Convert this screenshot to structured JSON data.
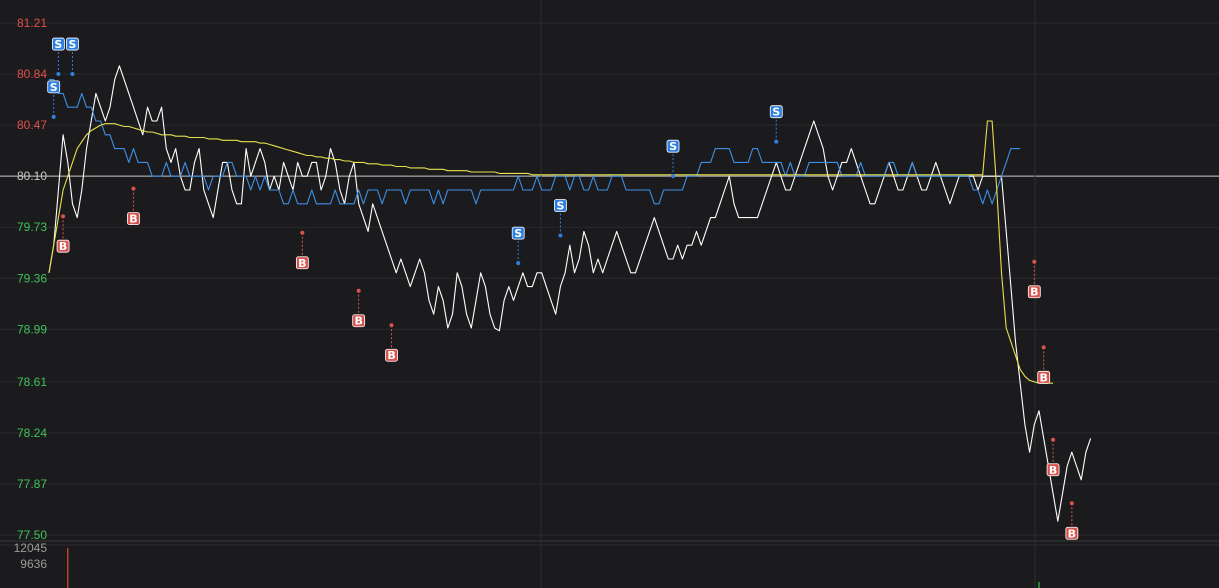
{
  "chart_data": {
    "type": "line",
    "title": "",
    "xlabel": "",
    "ylabel": "",
    "ylim": [
      77.5,
      81.21
    ],
    "y_ticks": [
      "81.21",
      "80.84",
      "80.47",
      "80.10",
      "79.73",
      "79.36",
      "78.99",
      "78.61",
      "78.24",
      "77.87",
      "77.50"
    ],
    "reference_price": 80.1,
    "grid": true,
    "x_points": 225,
    "series": [
      {
        "color": "#ffffff",
        "values": [
          79.4,
          79.6,
          80.0,
          80.4,
          80.2,
          79.9,
          79.8,
          80.0,
          80.3,
          80.5,
          80.7,
          80.6,
          80.5,
          80.6,
          80.8,
          80.9,
          80.8,
          80.7,
          80.6,
          80.5,
          80.4,
          80.6,
          80.5,
          80.5,
          80.6,
          80.3,
          80.2,
          80.3,
          80.1,
          80.0,
          80.0,
          80.2,
          80.3,
          80.0,
          79.9,
          79.8,
          80.0,
          80.2,
          80.2,
          80.0,
          79.9,
          79.9,
          80.3,
          80.1,
          80.2,
          80.3,
          80.2,
          80.0,
          80.1,
          80.0,
          80.2,
          80.1,
          80.0,
          80.2,
          80.1,
          80.1,
          80.2,
          80.2,
          80.0,
          80.1,
          80.3,
          80.2,
          80.0,
          79.9,
          80.1,
          80.2,
          79.9,
          79.8,
          79.7,
          79.9,
          79.8,
          79.7,
          79.6,
          79.5,
          79.4,
          79.5,
          79.4,
          79.3,
          79.4,
          79.5,
          79.4,
          79.2,
          79.1,
          79.3,
          79.2,
          79.0,
          79.1,
          79.4,
          79.3,
          79.1,
          79.0,
          79.2,
          79.4,
          79.3,
          79.1,
          79.0,
          78.98,
          79.2,
          79.3,
          79.2,
          79.3,
          79.4,
          79.3,
          79.3,
          79.4,
          79.4,
          79.3,
          79.2,
          79.1,
          79.3,
          79.4,
          79.6,
          79.4,
          79.5,
          79.7,
          79.6,
          79.4,
          79.5,
          79.4,
          79.5,
          79.6,
          79.7,
          79.6,
          79.5,
          79.4,
          79.4,
          79.5,
          79.6,
          79.7,
          79.8,
          79.7,
          79.6,
          79.5,
          79.5,
          79.6,
          79.5,
          79.6,
          79.6,
          79.7,
          79.6,
          79.7,
          79.8,
          79.8,
          79.9,
          80.0,
          80.1,
          79.9,
          79.8,
          79.8,
          79.8,
          79.8,
          79.8,
          79.9,
          80.0,
          80.1,
          80.2,
          80.1,
          80.0,
          80.0,
          80.1,
          80.2,
          80.3,
          80.4,
          80.5,
          80.4,
          80.3,
          80.1,
          80.0,
          80.1,
          80.2,
          80.2,
          80.3,
          80.2,
          80.1,
          80.0,
          79.9,
          79.9,
          80.0,
          80.1,
          80.2,
          80.1,
          80.0,
          80.0,
          80.1,
          80.2,
          80.1,
          80.0,
          80.0,
          80.1,
          80.2,
          80.1,
          80.0,
          79.9,
          80.0,
          80.1,
          80.1,
          80.1,
          80.1,
          80.0,
          80.1,
          80.1,
          80.1,
          80.1,
          80.1,
          79.7,
          79.3,
          78.9,
          78.6,
          78.3,
          78.1,
          78.3,
          78.4,
          78.2,
          78.0,
          77.8,
          77.6,
          77.8,
          78.0,
          78.1,
          78.0,
          77.9,
          78.1,
          78.2
        ]
      },
      {
        "color": "#3d8fe6",
        "values": [
          80.8,
          80.8,
          80.7,
          80.7,
          80.6,
          80.6,
          80.6,
          80.7,
          80.6,
          80.6,
          80.5,
          80.5,
          80.4,
          80.4,
          80.3,
          80.3,
          80.3,
          80.2,
          80.3,
          80.2,
          80.2,
          80.2,
          80.1,
          80.1,
          80.1,
          80.2,
          80.1,
          80.1,
          80.1,
          80.2,
          80.1,
          80.1,
          80.1,
          80.1,
          80.0,
          80.1,
          80.1,
          80.1,
          80.2,
          80.2,
          80.1,
          80.1,
          80.1,
          80.0,
          80.1,
          80.0,
          80.1,
          80.0,
          80.0,
          80.0,
          79.9,
          79.9,
          80.0,
          79.9,
          79.9,
          79.9,
          80.0,
          79.9,
          79.9,
          79.9,
          79.9,
          80.0,
          79.9,
          79.9,
          79.9,
          79.9,
          80.0,
          79.9,
          80.0,
          80.0,
          80.0,
          79.9,
          80.0,
          80.0,
          80.0,
          80.0,
          79.9,
          80.0,
          80.0,
          80.0,
          80.0,
          80.0,
          79.9,
          80.0,
          79.9,
          80.0,
          80.0,
          80.0,
          80.0,
          80.0,
          80.0,
          79.9,
          80.0,
          80.0,
          80.0,
          80.0,
          80.0,
          80.0,
          80.0,
          80.0,
          80.1,
          80.0,
          80.0,
          80.0,
          80.1,
          80.0,
          80.0,
          80.0,
          80.1,
          80.1,
          80.1,
          80.0,
          80.1,
          80.1,
          80.0,
          80.0,
          80.1,
          80.0,
          80.0,
          80.0,
          80.1,
          80.1,
          80.1,
          80.0,
          80.0,
          80.0,
          80.0,
          80.0,
          80.0,
          79.9,
          79.9,
          80.0,
          80.0,
          80.0,
          80.0,
          80.0,
          80.1,
          80.1,
          80.1,
          80.2,
          80.2,
          80.2,
          80.3,
          80.3,
          80.3,
          80.3,
          80.2,
          80.2,
          80.2,
          80.2,
          80.3,
          80.3,
          80.2,
          80.2,
          80.2,
          80.2,
          80.2,
          80.1,
          80.2,
          80.1,
          80.1,
          80.1,
          80.2,
          80.2,
          80.2,
          80.2,
          80.2,
          80.2,
          80.2,
          80.1,
          80.1,
          80.1,
          80.1,
          80.2,
          80.1,
          80.1,
          80.1,
          80.1,
          80.1,
          80.2,
          80.2,
          80.1,
          80.1,
          80.1,
          80.2,
          80.1,
          80.1,
          80.1,
          80.1,
          80.1,
          80.1,
          80.1,
          80.1,
          80.1,
          80.1,
          80.1,
          80.1,
          80.0,
          80.0,
          79.9,
          80.0,
          79.9,
          80.0,
          80.1,
          80.2,
          80.3,
          80.3,
          80.3
        ]
      },
      {
        "color": "#e6e04d",
        "values": [
          79.4,
          79.6,
          79.8,
          80.0,
          80.1,
          80.2,
          80.3,
          80.35,
          80.4,
          80.43,
          80.45,
          80.47,
          80.48,
          80.48,
          80.48,
          80.47,
          80.46,
          80.46,
          80.45,
          80.44,
          80.43,
          80.42,
          80.42,
          80.41,
          80.4,
          80.4,
          80.4,
          80.39,
          80.39,
          80.39,
          80.38,
          80.38,
          80.38,
          80.38,
          80.37,
          80.37,
          80.37,
          80.36,
          80.36,
          80.36,
          80.36,
          80.35,
          80.35,
          80.35,
          80.35,
          80.34,
          80.34,
          80.33,
          80.32,
          80.31,
          80.3,
          80.29,
          80.28,
          80.27,
          80.26,
          80.25,
          80.25,
          80.24,
          80.24,
          80.23,
          80.23,
          80.22,
          80.22,
          80.21,
          80.21,
          80.2,
          80.2,
          80.2,
          80.19,
          80.19,
          80.19,
          80.18,
          80.18,
          80.18,
          80.17,
          80.17,
          80.17,
          80.16,
          80.16,
          80.16,
          80.16,
          80.15,
          80.15,
          80.15,
          80.15,
          80.14,
          80.14,
          80.14,
          80.14,
          80.14,
          80.13,
          80.13,
          80.13,
          80.13,
          80.13,
          80.13,
          80.12,
          80.12,
          80.12,
          80.12,
          80.12,
          80.12,
          80.12,
          80.11,
          80.11,
          80.11,
          80.11,
          80.11,
          80.11,
          80.11,
          80.11,
          80.11,
          80.11,
          80.11,
          80.11,
          80.11,
          80.11,
          80.11,
          80.11,
          80.11,
          80.11,
          80.11,
          80.11,
          80.11,
          80.11,
          80.11,
          80.11,
          80.11,
          80.11,
          80.11,
          80.11,
          80.11,
          80.11,
          80.11,
          80.11,
          80.11,
          80.11,
          80.11,
          80.11,
          80.11,
          80.11,
          80.11,
          80.11,
          80.11,
          80.11,
          80.11,
          80.11,
          80.11,
          80.11,
          80.11,
          80.11,
          80.11,
          80.11,
          80.11,
          80.11,
          80.11,
          80.11,
          80.11,
          80.11,
          80.11,
          80.11,
          80.11,
          80.11,
          80.11,
          80.11,
          80.11,
          80.11,
          80.11,
          80.11,
          80.11,
          80.11,
          80.11,
          80.11,
          80.11,
          80.11,
          80.11,
          80.11,
          80.11,
          80.11,
          80.11,
          80.11,
          80.11,
          80.11,
          80.11,
          80.11,
          80.11,
          80.11,
          80.11,
          80.11,
          80.11,
          80.11,
          80.11,
          80.11,
          80.11,
          80.11,
          80.11,
          80.11,
          80.11,
          80.11,
          80.11,
          80.5,
          80.5,
          80.0,
          79.4,
          79.0,
          78.9,
          78.8,
          78.7,
          78.65,
          78.62,
          78.61,
          78.6,
          78.6,
          78.6,
          78.6
        ]
      }
    ],
    "markers": [
      {
        "label": "S",
        "type": "sell",
        "index": 1,
        "price": 80.53
      },
      {
        "label": "S",
        "type": "sell",
        "index": 2,
        "price": 80.84
      },
      {
        "label": "S",
        "type": "sell",
        "index": 5,
        "price": 80.84
      },
      {
        "label": "B",
        "type": "buy",
        "index": 3,
        "price": 79.81
      },
      {
        "label": "B",
        "type": "buy",
        "index": 18,
        "price": 80.01
      },
      {
        "label": "B",
        "type": "buy",
        "index": 54,
        "price": 79.69
      },
      {
        "label": "B",
        "type": "buy",
        "index": 66,
        "price": 79.27
      },
      {
        "label": "B",
        "type": "buy",
        "index": 73,
        "price": 79.02
      },
      {
        "label": "S",
        "type": "sell",
        "index": 100,
        "price": 79.47
      },
      {
        "label": "S",
        "type": "sell",
        "index": 109,
        "price": 79.67
      },
      {
        "label": "S",
        "type": "sell",
        "index": 133,
        "price": 80.1
      },
      {
        "label": "S",
        "type": "sell",
        "index": 155,
        "price": 80.35
      },
      {
        "label": "B",
        "type": "buy",
        "index": 210,
        "price": 79.48
      },
      {
        "label": "B",
        "type": "buy",
        "index": 212,
        "price": 78.86
      },
      {
        "label": "B",
        "type": "buy",
        "index": 214,
        "price": 78.19
      },
      {
        "label": "B",
        "type": "buy",
        "index": 218,
        "price": 77.73
      }
    ],
    "volume": {
      "ticks": [
        "12045",
        "9636"
      ],
      "bars": [
        {
          "index": 4,
          "value": 12045,
          "color": "#e04a3a"
        },
        {
          "index": 211,
          "value": 500,
          "color": "#35c24a"
        }
      ]
    }
  },
  "colors": {
    "up": "#e0504a",
    "down": "#3fc25a",
    "reference": "#c8c8c8",
    "grid": "#2a2a2d",
    "sell_marker": "#2f7fe0",
    "buy_marker": "#d9534f"
  }
}
